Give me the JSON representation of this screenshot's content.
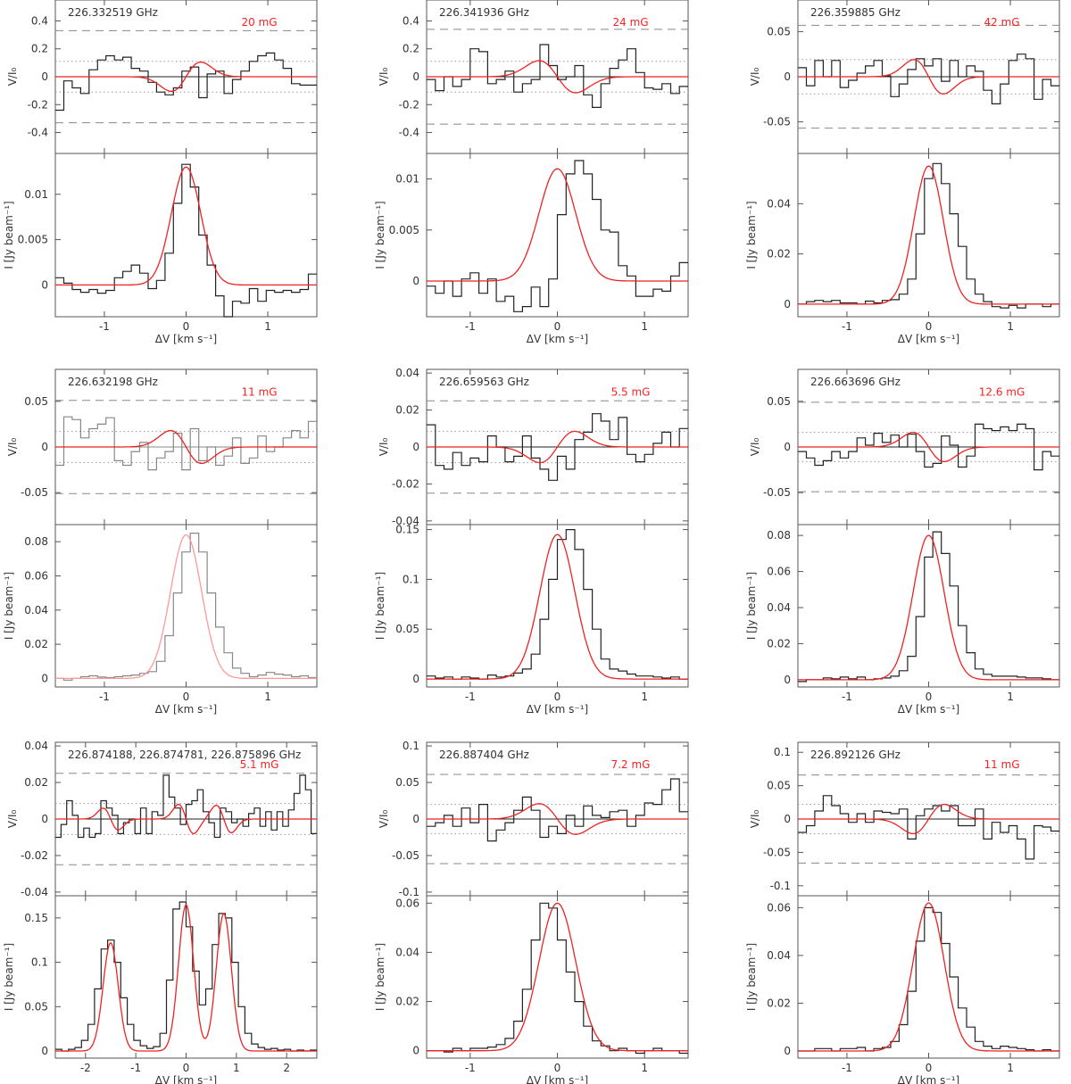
{
  "figure": {
    "x_axis_label": "ΔV [km s⁻¹]",
    "stokes_v_axis_label": "V/I₀",
    "intensity_axis_label": "I [Jy beam⁻¹]",
    "colors": {
      "observed": "#222222",
      "observed_light": "#888888",
      "model": "#ee2222",
      "model_light": "#ff9999",
      "threshold_dashed": "#888888",
      "threshold_dotted": "#999999"
    }
  },
  "chart_data": [
    {
      "type": "line",
      "panel": "r1c1",
      "frequency_label": "226.332519 GHz",
      "field_label": "20 mG",
      "xlim": [
        -1.6,
        1.6
      ],
      "xticks": [
        "-1",
        "0",
        "1"
      ],
      "xtick_values": [
        -1,
        0,
        1
      ],
      "v_ylim": [
        -0.55,
        0.55
      ],
      "v_yticks": [
        "-0.4",
        "-0.2",
        "0",
        "0.2",
        "0.4"
      ],
      "v_ytick_values": [
        -0.4,
        -0.2,
        0,
        0.2,
        0.4
      ],
      "v_dashed": 0.33,
      "v_dotted": 0.11,
      "i_ylim": [
        -0.0035,
        0.0145
      ],
      "i_yticks": [
        "0",
        "0.005",
        "0.01"
      ],
      "i_ytick_values": [
        0,
        0.005,
        0.01
      ],
      "i_amplitude": 0.013,
      "i_sigma": 0.18,
      "v_model_amplitude": 0.105,
      "v_observed": [
        -0.24,
        -0.03,
        -0.08,
        -0.12,
        0.05,
        0.12,
        0.15,
        0.12,
        0.14,
        0.06,
        0.04,
        -0.04,
        -0.11,
        -0.13,
        -0.08,
        0.04,
        0.07,
        -0.15,
        0.02,
        0.04,
        -0.12,
        -0.02,
        0.04,
        0.11,
        0.15,
        0.17,
        0.12,
        0.06,
        -0.05,
        -0.06,
        -0.06
      ],
      "i_observed": [
        0.0008,
        0.0002,
        -0.0005,
        -0.0008,
        -0.0005,
        -0.0009,
        -0.0006,
        0.0008,
        0.0015,
        0.0022,
        0.0013,
        -0.0004,
        0.0005,
        0.0035,
        0.009,
        0.0133,
        0.0108,
        0.0055,
        0.0022,
        -0.0012,
        -0.0035,
        -0.0018,
        -0.002,
        -0.0004,
        -0.0018,
        -0.0006,
        -0.0008,
        -0.0006,
        -0.0008,
        -0.0005,
        0.0012
      ]
    },
    {
      "type": "line",
      "panel": "r1c2",
      "frequency_label": "226.341936 GHz",
      "field_label": "24 mG",
      "xlim": [
        -1.5,
        1.5
      ],
      "xticks": [
        "-1",
        "0",
        "1"
      ],
      "xtick_values": [
        -1,
        0,
        1
      ],
      "v_ylim": [
        -0.55,
        0.55
      ],
      "v_yticks": [
        "-0.4",
        "-0.2",
        "0",
        "0.2",
        "0.4"
      ],
      "v_ytick_values": [
        -0.4,
        -0.2,
        0,
        0.2,
        0.4
      ],
      "v_dashed": 0.34,
      "v_dotted": 0.11,
      "i_ylim": [
        -0.0035,
        0.0125
      ],
      "i_yticks": [
        "0",
        "0.005",
        "0.01"
      ],
      "i_ytick_values": [
        0,
        0.005,
        0.01
      ],
      "i_amplitude": 0.011,
      "i_sigma": 0.21,
      "v_model_amplitude": -0.115,
      "v_observed": [
        -0.02,
        -0.1,
        0.0,
        -0.07,
        -0.02,
        0.2,
        0.18,
        -0.05,
        -0.02,
        0.04,
        -0.11,
        -0.05,
        -0.02,
        0.23,
        0.08,
        -0.02,
        0.0,
        0.08,
        -0.13,
        -0.22,
        -0.05,
        0.06,
        0.12,
        0.2,
        0.03,
        -0.08,
        -0.09,
        -0.05,
        -0.12,
        -0.07
      ],
      "i_observed": [
        -0.0005,
        -0.0012,
        0.0,
        -0.0015,
        0.0002,
        0.0008,
        -0.0012,
        0.0002,
        -0.002,
        -0.0015,
        -0.003,
        -0.0025,
        -0.0006,
        -0.0025,
        0.0002,
        0.0065,
        0.0105,
        0.0118,
        0.0105,
        0.008,
        0.005,
        0.0048,
        0.0015,
        0.0005,
        -0.0015,
        -0.0015,
        -0.0008,
        -0.001,
        0.0005,
        0.0018
      ]
    },
    {
      "type": "line",
      "panel": "r1c3",
      "frequency_label": "226.359885 GHz",
      "field_label": "42 mG",
      "xlim": [
        -1.6,
        1.6
      ],
      "xticks": [
        "-1",
        "0",
        "1"
      ],
      "xtick_values": [
        -1,
        0,
        1
      ],
      "v_ylim": [
        -0.085,
        0.085
      ],
      "v_yticks": [
        "-0.05",
        "0",
        "0.05"
      ],
      "v_ytick_values": [
        -0.05,
        0,
        0.05
      ],
      "v_dashed": 0.057,
      "v_dotted": 0.019,
      "i_ylim": [
        -0.005,
        0.06
      ],
      "i_yticks": [
        "0",
        "0.02",
        "0.04"
      ],
      "i_ytick_values": [
        0,
        0.02,
        0.04
      ],
      "i_amplitude": 0.055,
      "i_sigma": 0.18,
      "v_model_amplitude": -0.019,
      "v_observed": [
        0.01,
        -0.01,
        0.018,
        0.0,
        0.018,
        -0.012,
        -0.004,
        0.004,
        0.012,
        0.018,
        0.001,
        -0.022,
        -0.008,
        0.008,
        0.02,
        0.012,
        0.02,
        -0.005,
        0.018,
        0.0,
        0.012,
        0.006,
        -0.015,
        -0.03,
        -0.008,
        0.018,
        0.025,
        0.02,
        -0.025,
        -0.003,
        -0.01
      ],
      "i_observed": [
        0.0,
        0.001,
        0.0015,
        0.001,
        0.0015,
        0.0005,
        0.0005,
        0.0,
        0.0012,
        0.0005,
        0.0015,
        0.0018,
        0.004,
        0.01,
        0.028,
        0.05,
        0.056,
        0.048,
        0.036,
        0.023,
        0.01,
        0.004,
        0.001,
        -0.001,
        -0.0015,
        -0.0005,
        -0.0015,
        0.0,
        0.0,
        -0.001,
        0.0
      ]
    },
    {
      "type": "line",
      "panel": "r2c1",
      "muted": true,
      "frequency_label": "226.632198 GHz",
      "field_label": "11 mG",
      "xlim": [
        -1.6,
        1.6
      ],
      "xticks": [
        "-1",
        "0",
        "1"
      ],
      "xtick_values": [
        -1,
        0,
        1
      ],
      "v_ylim": [
        -0.085,
        0.085
      ],
      "v_yticks": [
        "-0.05",
        "0",
        "0.05"
      ],
      "v_ytick_values": [
        -0.05,
        0,
        0.05
      ],
      "v_dashed": 0.051,
      "v_dotted": 0.017,
      "i_ylim": [
        -0.005,
        0.09
      ],
      "i_yticks": [
        "0",
        "0.02",
        "0.04",
        "0.06",
        "0.08"
      ],
      "i_ytick_values": [
        0,
        0.02,
        0.04,
        0.06,
        0.08
      ],
      "i_amplitude": 0.084,
      "i_sigma": 0.19,
      "v_model_amplitude": -0.018,
      "v_observed": [
        -0.02,
        0.033,
        0.03,
        0.01,
        0.02,
        0.025,
        0.032,
        -0.015,
        -0.02,
        -0.005,
        0.005,
        -0.025,
        -0.012,
        -0.005,
        0.015,
        -0.025,
        0.02,
        -0.015,
        0.0,
        -0.02,
        -0.01,
        0.01,
        -0.018,
        -0.012,
        0.012,
        -0.005,
        0.0,
        0.01,
        0.018,
        0.01,
        0.028
      ],
      "i_observed": [
        0.0,
        -0.001,
        0.0,
        0.001,
        0.0015,
        0.0008,
        0.0005,
        0.001,
        0.0015,
        0.002,
        0.003,
        0.004,
        0.01,
        0.025,
        0.05,
        0.074,
        0.085,
        0.074,
        0.05,
        0.03,
        0.015,
        0.006,
        0.003,
        0.001,
        0.002,
        0.0035,
        0.0025,
        0.002,
        0.001,
        0.0015,
        0.0005
      ]
    },
    {
      "type": "line",
      "panel": "r2c2",
      "frequency_label": "226.659563 GHz",
      "field_label": "5.5 mG",
      "xlim": [
        -1.5,
        1.5
      ],
      "xticks": [
        "-1",
        "0",
        "1"
      ],
      "xtick_values": [
        -1,
        0,
        1
      ],
      "v_ylim": [
        -0.042,
        0.042
      ],
      "v_yticks": [
        "-0.04",
        "-0.02",
        "0",
        "0.02",
        "0.04"
      ],
      "v_ytick_values": [
        -0.04,
        -0.02,
        0,
        0.02,
        0.04
      ],
      "v_dashed": 0.025,
      "v_dotted": 0.0085,
      "i_ylim": [
        -0.008,
        0.155
      ],
      "i_yticks": [
        "0",
        "0.05",
        "0.1",
        "0.15"
      ],
      "i_ytick_values": [
        0,
        0.05,
        0.1,
        0.15
      ],
      "i_amplitude": 0.145,
      "i_sigma": 0.2,
      "v_model_amplitude": 0.0085,
      "v_observed": [
        0.012,
        -0.01,
        -0.012,
        -0.003,
        -0.01,
        -0.006,
        -0.008,
        0.006,
        0.0,
        -0.008,
        -0.005,
        0.006,
        -0.006,
        -0.012,
        -0.018,
        -0.005,
        -0.012,
        0.004,
        0.008,
        0.018,
        0.014,
        0.004,
        0.016,
        -0.004,
        -0.008,
        -0.004,
        0.002,
        0.008,
        0.0,
        0.01
      ],
      "i_observed": [
        0.003,
        0.001,
        0.002,
        0.0,
        0.002,
        0.001,
        0.0,
        0.004,
        0.002,
        0.003,
        0.006,
        0.01,
        0.025,
        0.06,
        0.1,
        0.14,
        0.15,
        0.13,
        0.09,
        0.05,
        0.02,
        0.01,
        0.008,
        0.005,
        0.003,
        0.003,
        0.002,
        0.001,
        0.002,
        0.0
      ]
    },
    {
      "type": "line",
      "panel": "r2c3",
      "frequency_label": "226.663696 GHz",
      "field_label": "12.6 mG",
      "xlim": [
        -1.6,
        1.6
      ],
      "xticks": [
        "-1",
        "0",
        "1"
      ],
      "xtick_values": [
        -1,
        0,
        1
      ],
      "v_ylim": [
        -0.085,
        0.085
      ],
      "v_yticks": [
        "-0.05",
        "0",
        "0.05"
      ],
      "v_ytick_values": [
        -0.05,
        0,
        0.05
      ],
      "v_dashed": 0.049,
      "v_dotted": 0.016,
      "i_ylim": [
        -0.004,
        0.086
      ],
      "i_yticks": [
        "0",
        "0.02",
        "0.04",
        "0.06",
        "0.08"
      ],
      "i_ytick_values": [
        0,
        0.02,
        0.04,
        0.06,
        0.08
      ],
      "i_amplitude": 0.08,
      "i_sigma": 0.19,
      "v_model_amplitude": -0.016,
      "v_observed": [
        -0.005,
        -0.012,
        -0.02,
        -0.015,
        -0.005,
        -0.012,
        -0.005,
        0.01,
        0.002,
        0.015,
        0.005,
        0.013,
        0.0,
        0.014,
        -0.005,
        -0.022,
        -0.018,
        0.012,
        0.002,
        -0.022,
        -0.01,
        0.025,
        0.02,
        0.018,
        0.022,
        0.018,
        0.025,
        0.02,
        -0.025,
        -0.005,
        -0.01
      ],
      "i_observed": [
        -0.001,
        0.0,
        0.0,
        0.001,
        0.0005,
        0.0015,
        0.0005,
        0.0015,
        0.0,
        0.0005,
        0.001,
        0.002,
        0.005,
        0.013,
        0.035,
        0.068,
        0.082,
        0.07,
        0.052,
        0.03,
        0.015,
        0.006,
        0.003,
        0.002,
        0.002,
        0.002,
        0.0015,
        0.001,
        0.001,
        0.0005,
        0.0
      ]
    },
    {
      "type": "line",
      "panel": "r3c1",
      "profile": "triplet",
      "frequency_label": "226.874188, 226.874781, 226.875896 GHz",
      "field_label": "5.1 mG",
      "xlim": [
        -2.6,
        2.6
      ],
      "xticks": [
        "-2",
        "-1",
        "0",
        "1",
        "2"
      ],
      "xtick_values": [
        -2,
        -1,
        0,
        1,
        2
      ],
      "v_ylim": [
        -0.042,
        0.042
      ],
      "v_yticks": [
        "-0.04",
        "-0.02",
        "0",
        "0.02",
        "0.04"
      ],
      "v_ytick_values": [
        -0.04,
        -0.02,
        0,
        0.02,
        0.04
      ],
      "v_dashed": 0.025,
      "v_dotted": 0.0085,
      "i_ylim": [
        -0.008,
        0.175
      ],
      "i_yticks": [
        "0",
        "0.05",
        "0.1",
        "0.15"
      ],
      "i_ytick_values": [
        0,
        0.05,
        0.1,
        0.15
      ],
      "triplet_components": [
        {
          "center": -1.5,
          "amplitude": 0.122,
          "sigma": 0.15
        },
        {
          "center": 0.0,
          "amplitude": 0.165,
          "sigma": 0.15
        },
        {
          "center": 0.75,
          "amplitude": 0.155,
          "sigma": 0.15
        }
      ],
      "v_model_amplitude": 0.008,
      "v_observed": [
        -0.01,
        -0.003,
        0.01,
        0.002,
        -0.01,
        -0.005,
        -0.01,
        -0.008,
        0.01,
        0.006,
        0.002,
        -0.008,
        -0.002,
        0.0,
        -0.008,
        0.006,
        -0.008,
        0.004,
        0.002,
        0.024,
        0.012,
        0.006,
        -0.003,
        0.008,
        0.01,
        0.016,
        0.004,
        -0.002,
        -0.01,
        0.006,
        0.004,
        -0.002,
        0.0,
        -0.004,
        0.003,
        0.006,
        -0.004,
        0.004,
        -0.006,
        0.004,
        -0.004,
        0.005,
        0.014,
        0.024,
        0.016,
        -0.008
      ],
      "i_observed": [
        0.002,
        0.0,
        0.002,
        0.004,
        0.012,
        0.03,
        0.07,
        0.115,
        0.125,
        0.1,
        0.06,
        0.03,
        0.012,
        0.006,
        0.003,
        0.005,
        0.02,
        0.08,
        0.16,
        0.168,
        0.14,
        0.09,
        0.052,
        0.07,
        0.12,
        0.155,
        0.15,
        0.1,
        0.05,
        0.02,
        0.008,
        0.004,
        0.002,
        0.003,
        0.001,
        0.002,
        0.0,
        0.001,
        0.0,
        0.001
      ]
    },
    {
      "type": "line",
      "panel": "r3c2",
      "frequency_label": "226.887404 GHz",
      "field_label": "7.2 mG",
      "xlim": [
        -1.5,
        1.5
      ],
      "xticks": [
        "-1",
        "0",
        "1"
      ],
      "xtick_values": [
        -1,
        0,
        1
      ],
      "v_ylim": [
        -0.105,
        0.105
      ],
      "v_yticks": [
        "-0.1",
        "-0.05",
        "0",
        "0.05",
        "0.1"
      ],
      "v_ytick_values": [
        -0.1,
        -0.05,
        0,
        0.05,
        0.1
      ],
      "v_dashed": 0.061,
      "v_dotted": 0.02,
      "i_ylim": [
        -0.003,
        0.063
      ],
      "i_yticks": [
        "0",
        "0.02",
        "0.04",
        "0.06"
      ],
      "i_ytick_values": [
        0,
        0.02,
        0.04,
        0.06
      ],
      "i_amplitude": 0.06,
      "i_sigma": 0.21,
      "v_model_amplitude": -0.021,
      "v_observed": [
        -0.01,
        -0.005,
        0.005,
        -0.01,
        0.015,
        -0.005,
        0.02,
        -0.03,
        -0.015,
        -0.005,
        0.012,
        0.03,
        0.012,
        -0.025,
        -0.01,
        -0.02,
        0.005,
        -0.01,
        0.018,
        0.005,
        0.002,
        0.01,
        0.012,
        -0.01,
        0.005,
        0.022,
        0.02,
        0.04,
        0.055,
        0.01
      ],
      "i_observed": [
        0.0,
        0.0,
        -0.0005,
        0.001,
        0.0,
        0.001,
        0.001,
        0.0015,
        0.0025,
        0.005,
        0.012,
        0.025,
        0.045,
        0.06,
        0.058,
        0.045,
        0.032,
        0.02,
        0.01,
        0.004,
        0.002,
        0.0,
        0.001,
        0.0,
        -0.001,
        0.0,
        0.001,
        0.0,
        0.0,
        -0.001
      ]
    },
    {
      "type": "line",
      "panel": "r3c3",
      "frequency_label": "226.892126 GHz",
      "field_label": "11 mG",
      "xlim": [
        -1.6,
        1.6
      ],
      "xticks": [
        "-1",
        "0",
        "1"
      ],
      "xtick_values": [
        -1,
        0,
        1
      ],
      "v_ylim": [
        -0.115,
        0.115
      ],
      "v_yticks": [
        "-0.1",
        "-0.05",
        "0",
        "0.05",
        "0.1"
      ],
      "v_ytick_values": [
        -0.1,
        -0.05,
        0,
        0.05,
        0.1
      ],
      "v_dashed": 0.066,
      "v_dotted": 0.022,
      "i_ylim": [
        -0.003,
        0.065
      ],
      "i_yticks": [
        "0",
        "0.02",
        "0.04",
        "0.06"
      ],
      "i_ytick_values": [
        0,
        0.02,
        0.04,
        0.06
      ],
      "i_amplitude": 0.062,
      "i_sigma": 0.19,
      "v_model_amplitude": 0.022,
      "v_observed": [
        -0.02,
        -0.01,
        0.012,
        0.035,
        0.02,
        0.008,
        -0.005,
        0.008,
        -0.005,
        0.012,
        0.01,
        0.008,
        0.015,
        -0.03,
        0.005,
        0.015,
        0.02,
        0.012,
        0.02,
        -0.01,
        -0.01,
        0.015,
        -0.03,
        -0.005,
        -0.02,
        -0.01,
        -0.03,
        -0.06,
        -0.01,
        -0.012,
        -0.018
      ],
      "i_observed": [
        0.0,
        0.0,
        0.001,
        0.001,
        0.0,
        0.001,
        0.001,
        0.0015,
        0.0,
        0.001,
        0.0015,
        0.004,
        0.011,
        0.025,
        0.046,
        0.06,
        0.058,
        0.045,
        0.031,
        0.018,
        0.01,
        0.004,
        0.002,
        0.001,
        0.002,
        0.0015,
        0.001,
        0.0005,
        0.0,
        0.0005,
        0.0
      ]
    }
  ]
}
